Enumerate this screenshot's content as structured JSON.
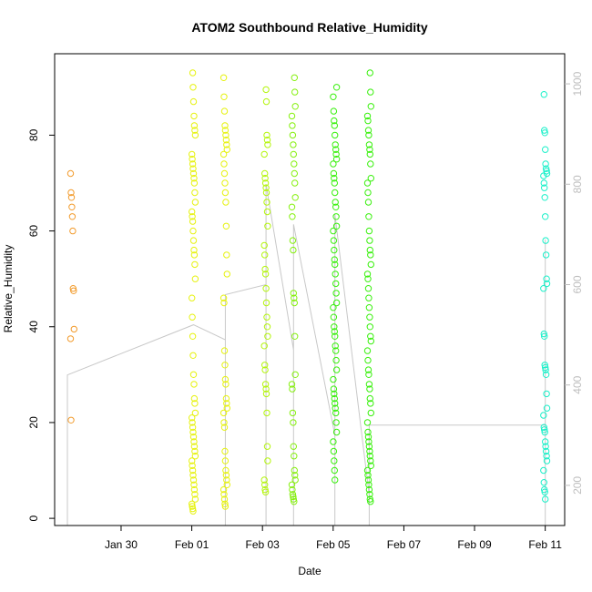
{
  "chart_data": {
    "type": "scatter",
    "title": "ATOM2 Southbound Relative_Humidity",
    "xlabel": "Date",
    "ylabel": "Relative_Humidity",
    "x_ticks": [
      {
        "day": 2,
        "label": "Jan 30"
      },
      {
        "day": 4,
        "label": "Feb 01"
      },
      {
        "day": 6,
        "label": "Feb 03"
      },
      {
        "day": 8,
        "label": "Feb 05"
      },
      {
        "day": 10,
        "label": "Feb 07"
      },
      {
        "day": 12,
        "label": "Feb 09"
      },
      {
        "day": 14,
        "label": "Feb 11"
      }
    ],
    "xlim": [
      0.12,
      14.55
    ],
    "ylim": [
      -1.5,
      97
    ],
    "y_ticks": [
      0,
      20,
      40,
      60,
      80
    ],
    "right_axis": {
      "label": "",
      "lim": [
        1060,
        120
      ],
      "ticks": [
        200,
        400,
        600,
        800,
        1000
      ],
      "color": "#bebebe"
    },
    "grid": false,
    "legend": "none",
    "point_style": "open-circle",
    "series": [
      {
        "color": "#f29b2c",
        "profiles": [
          {
            "x": 0.62,
            "pressure_top": 120,
            "pressure_bottom": 300,
            "points": [
              72,
              68,
              67,
              65,
              63,
              60,
              48,
              47.5,
              39.5,
              37.5,
              20.5
            ]
          }
        ]
      },
      {
        "color": "#e6f20f",
        "profiles": [
          {
            "x": 4.05,
            "pressure_top": 120,
            "pressure_bottom": 650,
            "points": [
              93,
              90,
              87,
              84,
              82,
              81,
              80,
              76,
              75,
              74,
              73,
              72,
              71,
              70,
              68,
              66,
              64,
              63,
              62,
              60,
              58,
              56,
              55,
              53,
              50,
              46,
              42,
              38,
              34,
              30,
              28,
              25,
              24,
              22,
              21,
              20,
              19,
              18,
              17,
              16,
              15,
              14,
              13,
              12,
              11,
              10,
              9,
              8,
              7,
              6,
              5,
              4,
              3,
              2.5,
              2,
              1.5
            ]
          },
          {
            "x": 4.95,
            "pressure_top": 120,
            "pressure_bottom": 600,
            "points": [
              92,
              88,
              85,
              82,
              81,
              80,
              79,
              78,
              77,
              76,
              74,
              72,
              70,
              68,
              66,
              61,
              55,
              51,
              46,
              45,
              35,
              32,
              29,
              28,
              25,
              24,
              23,
              22,
              20,
              19,
              14,
              12,
              10,
              9,
              8,
              7,
              6,
              5,
              4,
              3,
              2.5
            ]
          }
        ]
      },
      {
        "color": "#b4f50c",
        "profiles": [
          {
            "x": 6.1,
            "pressure_top": 120,
            "pressure_bottom": 780,
            "points": [
              89.5,
              87,
              80,
              79,
              78,
              76,
              72,
              71,
              70,
              69,
              68,
              66,
              64,
              61,
              57,
              55,
              52,
              51,
              48,
              45,
              42,
              40,
              38,
              36,
              32,
              31,
              28,
              27,
              26,
              22,
              15,
              12,
              8,
              7,
              6,
              5.5
            ]
          }
        ]
      },
      {
        "color": "#86f00f",
        "profiles": [
          {
            "x": 6.88,
            "pressure_top": 120,
            "pressure_bottom": 700,
            "points": [
              92,
              89,
              86,
              84,
              82,
              80,
              78,
              76,
              74,
              72,
              70,
              67,
              65,
              63,
              58,
              56,
              47,
              46,
              45,
              38,
              30,
              28,
              27,
              22,
              20,
              15,
              13,
              10,
              9,
              8,
              7,
              6,
              5,
              4.5,
              4,
              3.5
            ]
          }
        ]
      },
      {
        "color": "#38f00c",
        "profiles": [
          {
            "x": 8.05,
            "pressure_top": 120,
            "pressure_bottom": 720,
            "points": [
              90,
              88,
              85,
              83,
              82,
              80,
              78,
              77,
              76,
              75,
              74,
              72,
              71,
              70,
              68,
              66,
              65,
              63,
              61,
              60,
              58,
              56,
              54,
              53,
              51,
              49,
              47,
              45,
              44,
              42,
              40,
              39,
              38,
              36,
              35,
              33,
              31,
              29,
              27,
              26,
              25,
              24,
              23,
              22,
              20,
              18,
              16,
              14,
              12,
              10,
              8
            ]
          },
          {
            "x": 9.02,
            "pressure_top": 120,
            "pressure_bottom": 700,
            "points": [
              93,
              89,
              86,
              84,
              83,
              81,
              80,
              78,
              77,
              76,
              74,
              71,
              70,
              68,
              66,
              63,
              60,
              58,
              56,
              55,
              53,
              51,
              50,
              48,
              46,
              44,
              42,
              40,
              38,
              37,
              35,
              33,
              31,
              30,
              28,
              27,
              25,
              24,
              22,
              20,
              18,
              17,
              16,
              15,
              14,
              13,
              12,
              11,
              10,
              9,
              8,
              7,
              6,
              5,
              4,
              3.5
            ]
          }
        ]
      },
      {
        "color": "#19f0c9",
        "profiles": [
          {
            "x": 14.0,
            "pressure_top": 120,
            "pressure_bottom": 680,
            "points": [
              88.5,
              81,
              80.5,
              77,
              74,
              73,
              72.5,
              72,
              71.5,
              70,
              69,
              67,
              63,
              58,
              55,
              50,
              49,
              48,
              38.5,
              38,
              32,
              31.5,
              31,
              30,
              26,
              23,
              21.5,
              19,
              18.5,
              18,
              16,
              15,
              14,
              13,
              12,
              10,
              7.5,
              6,
              5.5,
              4
            ]
          }
        ]
      }
    ],
    "connector_path": [
      [
        0.48,
        270
      ],
      [
        0.48,
        120
      ],
      [
        0.48,
        420
      ],
      [
        4.05,
        520
      ],
      [
        4.95,
        490
      ],
      [
        4.95,
        120
      ],
      [
        4.95,
        580
      ],
      [
        6.1,
        600
      ],
      [
        6.1,
        120
      ],
      [
        6.1,
        800
      ],
      [
        6.88,
        470
      ],
      [
        6.88,
        120
      ],
      [
        6.88,
        720
      ],
      [
        8.05,
        300
      ],
      [
        8.05,
        120
      ],
      [
        8.05,
        740
      ],
      [
        9.02,
        180
      ],
      [
        9.02,
        120
      ],
      [
        9.02,
        320
      ],
      [
        14.0,
        320
      ],
      [
        14.0,
        120
      ],
      [
        14.0,
        690
      ]
    ]
  }
}
